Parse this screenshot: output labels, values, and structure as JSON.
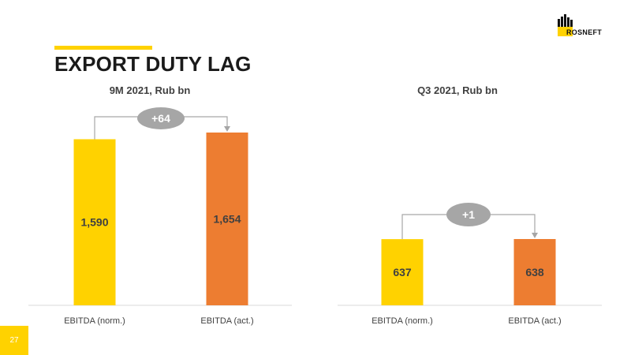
{
  "header": {
    "title": "EXPORT DUTY LAG"
  },
  "logo": {
    "text": "ROSNEFT",
    "icon": "rosneft-logo-icon"
  },
  "page_number": "27",
  "colors": {
    "accent": "#FFD200",
    "bar_norm": "#FFD200",
    "bar_act": "#ED7D31",
    "bubble": "#A6A6A6",
    "connector": "#A6A6A6",
    "axis": "#D9D9D9"
  },
  "chart_data": [
    {
      "type": "bar",
      "title": "9M 2021, Rub bn",
      "categories": [
        "EBITDA (norm.)",
        "EBITDA (act.)"
      ],
      "values": [
        1590,
        1654
      ],
      "value_labels": [
        "1,590",
        "1,654"
      ],
      "delta_label": "+64",
      "ylim": [
        0,
        1654
      ]
    },
    {
      "type": "bar",
      "title": "Q3 2021, Rub bn",
      "categories": [
        "EBITDA (norm.)",
        "EBITDA (act.)"
      ],
      "values": [
        637,
        638
      ],
      "value_labels": [
        "637",
        "638"
      ],
      "delta_label": "+1",
      "ylim": [
        0,
        638
      ]
    }
  ]
}
